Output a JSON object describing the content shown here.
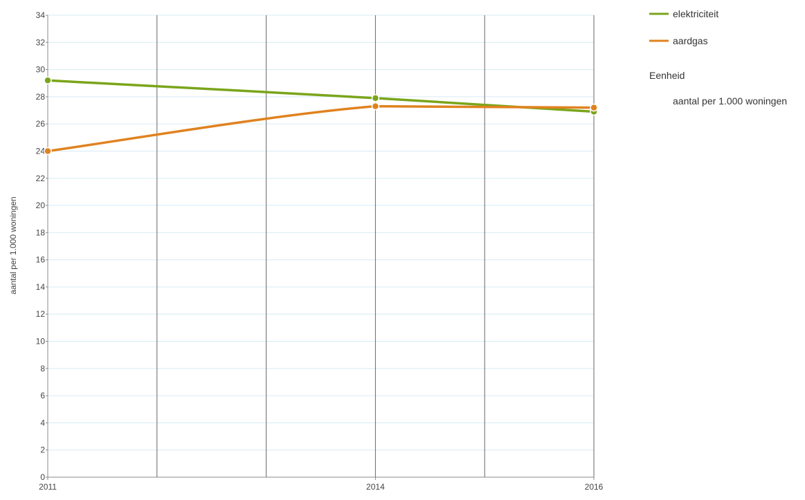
{
  "chart_data": {
    "type": "line",
    "x": [
      2011,
      2014,
      2016
    ],
    "xticks": [
      "2011",
      "2014",
      "2016"
    ],
    "xlim": [
      2011,
      2016
    ],
    "ylim": [
      0,
      34
    ],
    "yticks": [
      0,
      2,
      4,
      6,
      8,
      10,
      12,
      14,
      16,
      18,
      20,
      22,
      24,
      26,
      28,
      30,
      32,
      34
    ],
    "ylabel": "aantal per 1.000 woningen",
    "xlabel": "",
    "title": "",
    "grid": true,
    "legend_position": "top-right",
    "series": [
      {
        "name": "elektriciteit",
        "color": "#7aa51a",
        "values": [
          29.2,
          27.9,
          26.9
        ]
      },
      {
        "name": "aardgas",
        "color": "#e0821f",
        "values": [
          24.0,
          27.3,
          27.2
        ]
      }
    ],
    "legend": {
      "unit_heading": "Eenheid",
      "unit_value": "aantal per 1.000 woningen"
    }
  }
}
